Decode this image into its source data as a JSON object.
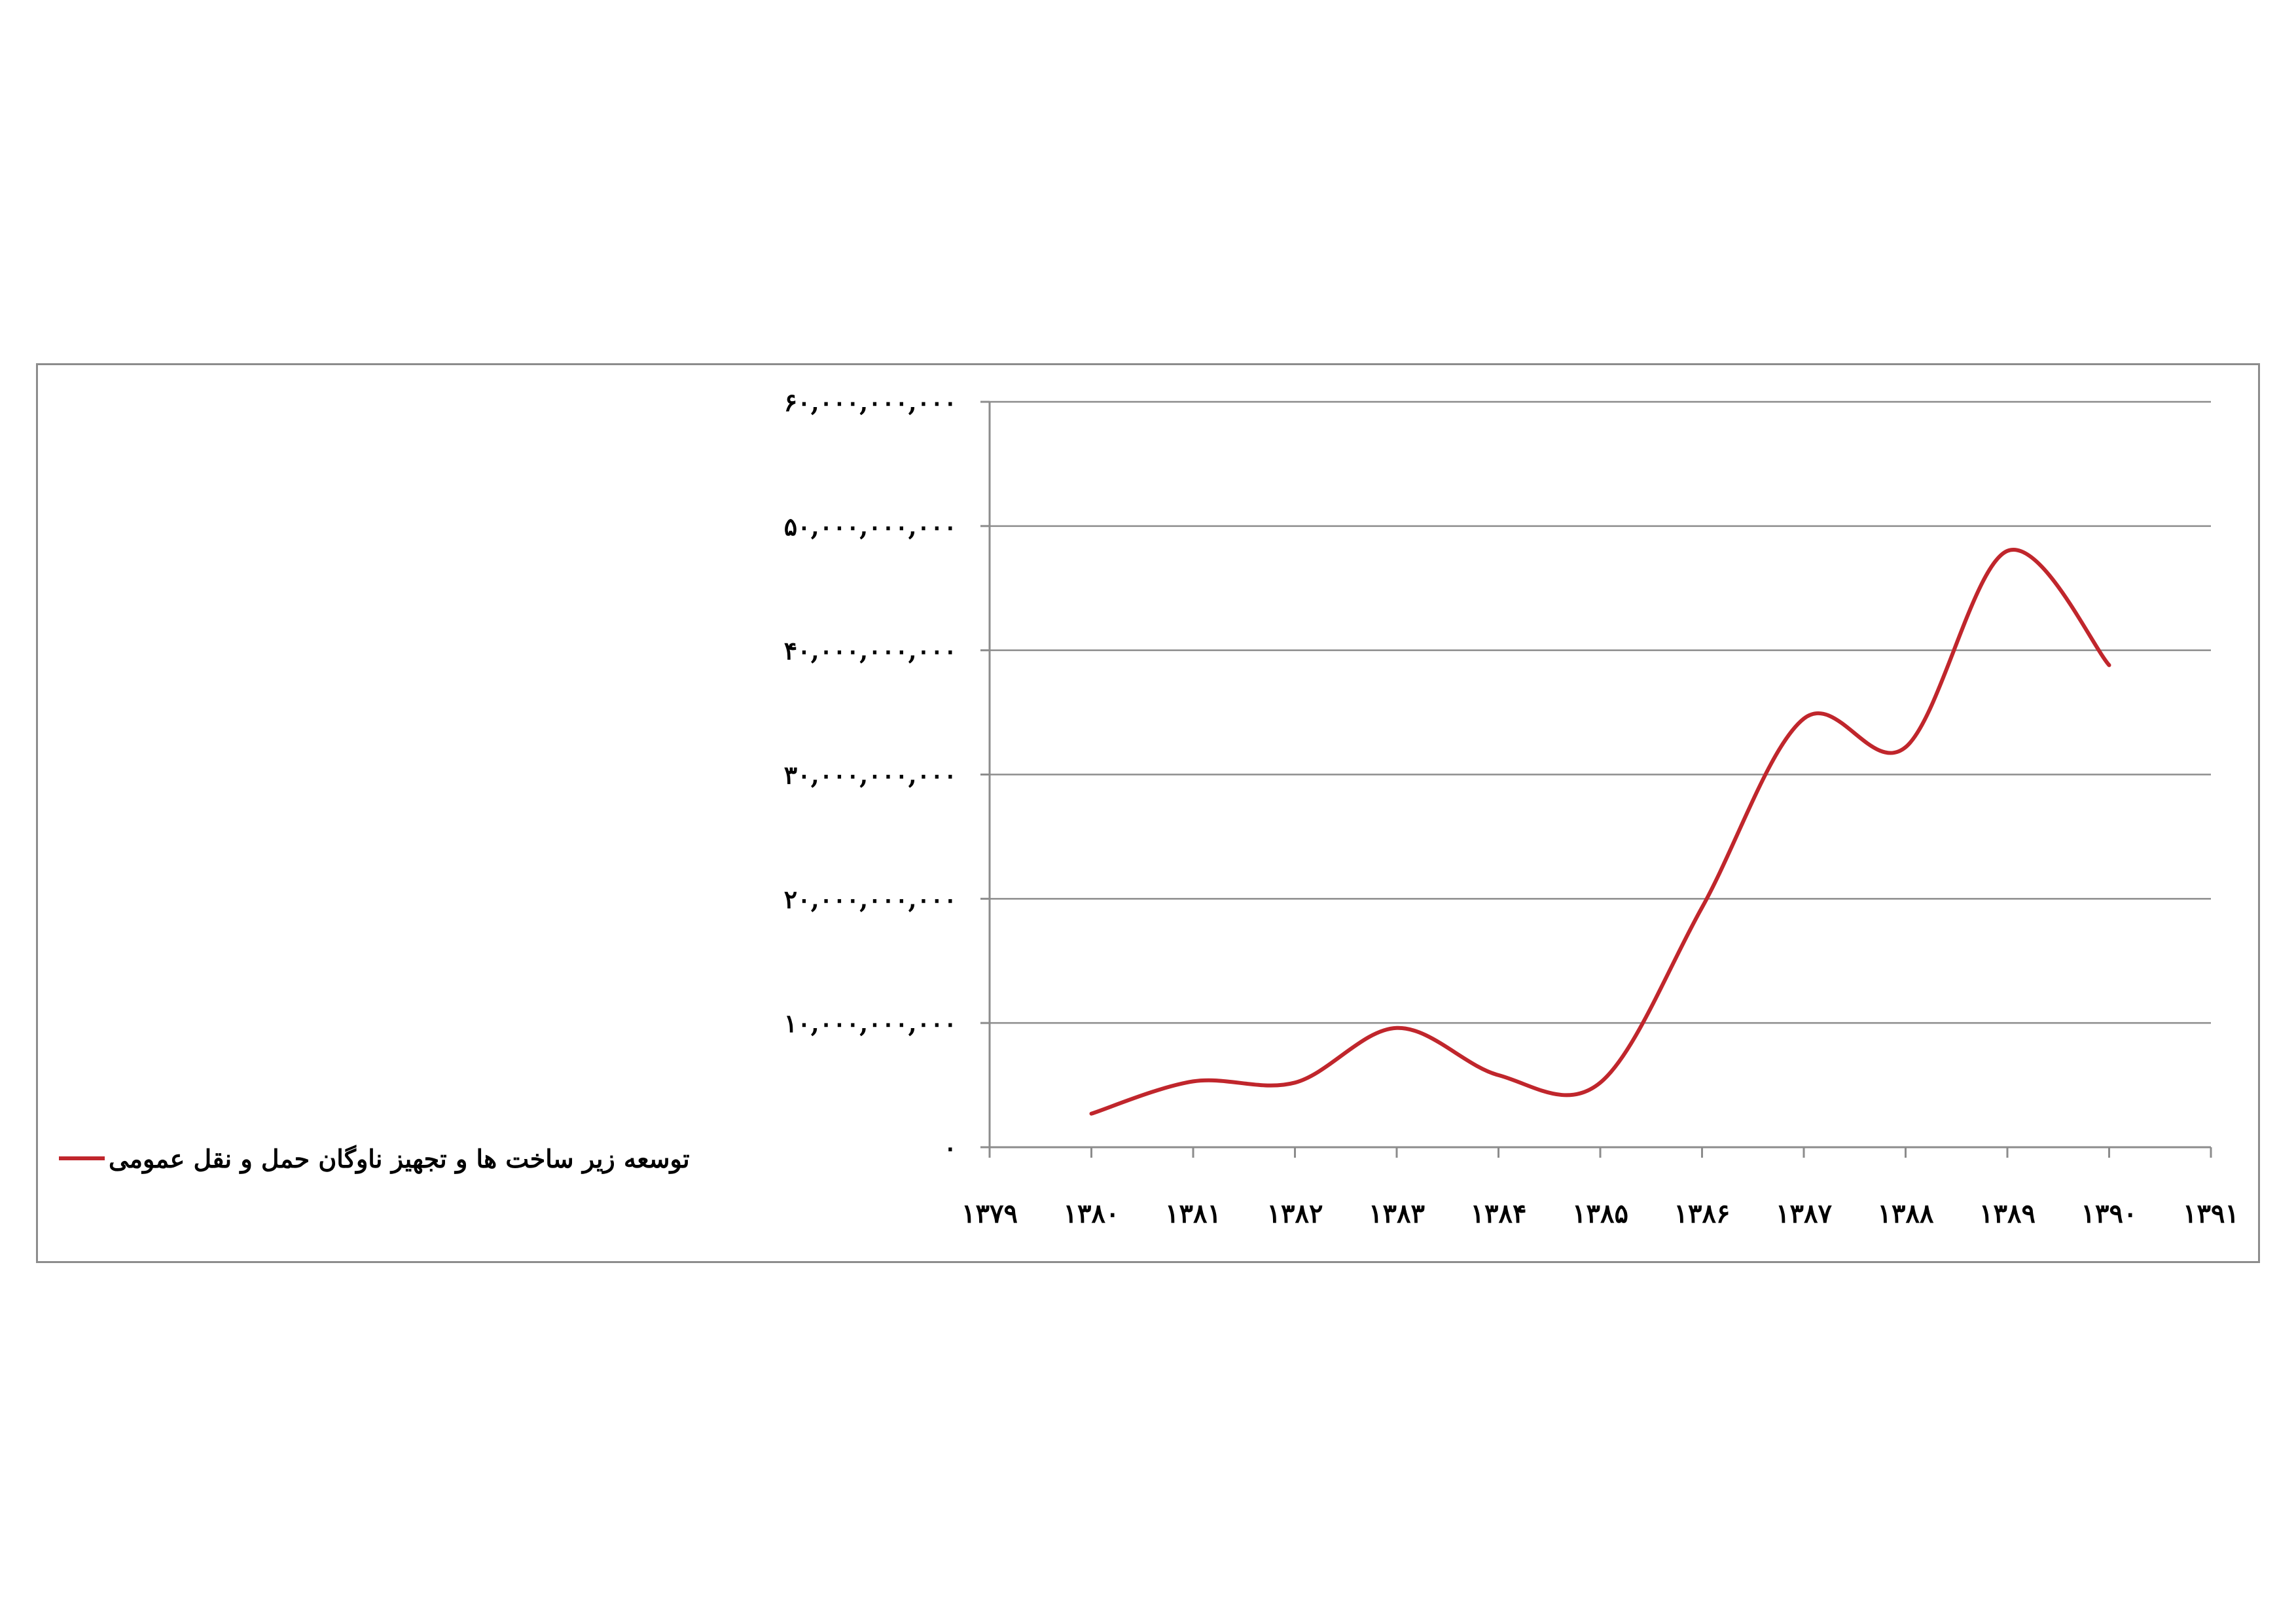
{
  "chart_data": {
    "type": "line",
    "title": "",
    "xlabel": "",
    "ylabel": "",
    "x": [
      "۱۳۷۹",
      "۱۳۸۰",
      "۱۳۸۱",
      "۱۳۸۲",
      "۱۳۸۳",
      "۱۳۸۴",
      "۱۳۸۵",
      "۱۳۸۶",
      "۱۳۸۷",
      "۱۳۸۸",
      "۱۳۸۹",
      "۱۳۹۰",
      "۱۳۹۱"
    ],
    "y_ticks": [
      "۰",
      "۱۰,۰۰۰,۰۰۰,۰۰۰",
      "۲۰,۰۰۰,۰۰۰,۰۰۰",
      "۳۰,۰۰۰,۰۰۰,۰۰۰",
      "۴۰,۰۰۰,۰۰۰,۰۰۰",
      "۵۰,۰۰۰,۰۰۰,۰۰۰",
      "۶۰,۰۰۰,۰۰۰,۰۰۰"
    ],
    "ylim": [
      0,
      60000000000
    ],
    "grid": true,
    "smooth": true,
    "legend_position": "bottom-left",
    "series": [
      {
        "name": "توسعه زیر ساخت ها و تجهیز ناوگان حمل و نقل عمومی",
        "color": "#c0262c",
        "values": [
          null,
          2700000000,
          5300000000,
          5200000000,
          9600000000,
          5800000000,
          5200000000,
          19300000000,
          34500000000,
          32200000000,
          48000000000,
          38800000000,
          null
        ]
      }
    ]
  }
}
